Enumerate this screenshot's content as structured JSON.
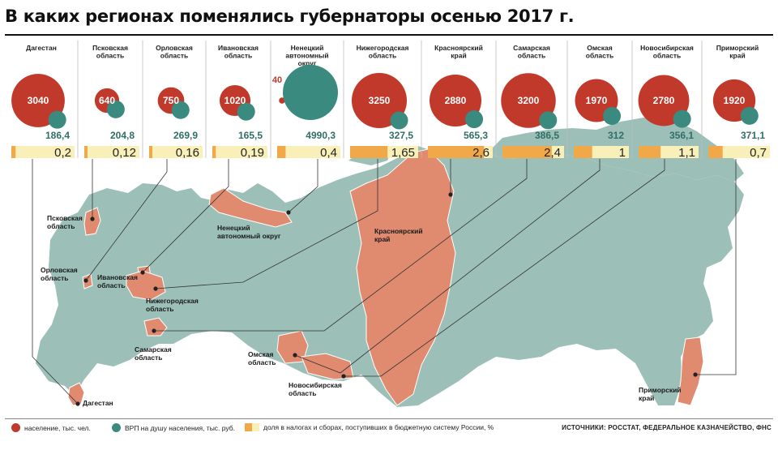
{
  "title": "В каких регионах поменялись губернаторы осенью 2017 г.",
  "colors": {
    "population": "#c0392b",
    "grp": "#3a8a80",
    "share_fill": "#f0a848",
    "share_bg": "#f8f0b8",
    "map_land": "#9cc0b7",
    "map_highlight": "#e08a70",
    "map_border": "#ffffff"
  },
  "chart_data": {
    "type": "bubble-table",
    "regions": [
      {
        "name": "Дагестан",
        "label_lines": [
          "Дагестан"
        ],
        "population": 3040,
        "population_label": "3040",
        "grp": 186.4,
        "grp_label": "186,4",
        "share": 0.2,
        "share_label": "0,2",
        "map_label_lines": [
          "Дагестан"
        ]
      },
      {
        "name": "Псковская область",
        "label_lines": [
          "Псковская",
          "область"
        ],
        "population": 640,
        "population_label": "640",
        "grp": 204.8,
        "grp_label": "204,8",
        "share": 0.12,
        "share_label": "0,12",
        "map_label_lines": [
          "Псковская",
          "область"
        ]
      },
      {
        "name": "Орловская область",
        "label_lines": [
          "Орловская",
          "область"
        ],
        "population": 750,
        "population_label": "750",
        "grp": 269.9,
        "grp_label": "269,9",
        "share": 0.16,
        "share_label": "0,16",
        "map_label_lines": [
          "Орловская",
          "область"
        ]
      },
      {
        "name": "Ивановская область",
        "label_lines": [
          "Ивановская",
          "область"
        ],
        "population": 1020,
        "population_label": "1020",
        "grp": 165.5,
        "grp_label": "165,5",
        "share": 0.19,
        "share_label": "0,19",
        "map_label_lines": [
          "Ивановская",
          "область"
        ]
      },
      {
        "name": "Ненецкий автономный округ",
        "label_lines": [
          "Ненецкий",
          "автономный",
          "округ"
        ],
        "population": 40,
        "population_label": "40",
        "grp": 4990.3,
        "grp_label": "4990,3",
        "share": 0.4,
        "share_label": "0,4",
        "map_label_lines": [
          "Ненецкий",
          "автономный округ"
        ]
      },
      {
        "name": "Нижегородская область",
        "label_lines": [
          "Нижегородская",
          "область"
        ],
        "population": 3250,
        "population_label": "3250",
        "grp": 327.5,
        "grp_label": "327,5",
        "share": 1.65,
        "share_label": "1,65",
        "map_label_lines": [
          "Нижегородская",
          "область"
        ]
      },
      {
        "name": "Красноярский край",
        "label_lines": [
          "Красноярский",
          "край"
        ],
        "population": 2880,
        "population_label": "2880",
        "grp": 565.3,
        "grp_label": "565,3",
        "share": 2.6,
        "share_label": "2,6",
        "map_label_lines": [
          "Красноярский",
          "край"
        ]
      },
      {
        "name": "Самарская область",
        "label_lines": [
          "Самарская",
          "область"
        ],
        "population": 3200,
        "population_label": "3200",
        "grp": 386.5,
        "grp_label": "386,5",
        "share": 2.4,
        "share_label": "2,4",
        "map_label_lines": [
          "Самарская",
          "область"
        ]
      },
      {
        "name": "Омская область",
        "label_lines": [
          "Омская",
          "область"
        ],
        "population": 1970,
        "population_label": "1970",
        "grp": 312,
        "grp_label": "312",
        "share": 1,
        "share_label": "1",
        "map_label_lines": [
          "Омская",
          "область"
        ]
      },
      {
        "name": "Новосибирская область",
        "label_lines": [
          "Новосибирская",
          "область"
        ],
        "population": 2780,
        "population_label": "2780",
        "grp": 356.1,
        "grp_label": "356,1",
        "share": 1.1,
        "share_label": "1,1",
        "map_label_lines": [
          "Новосибирская",
          "область"
        ]
      },
      {
        "name": "Приморский край",
        "label_lines": [
          "Приморский",
          "край"
        ],
        "population": 1920,
        "population_label": "1920",
        "grp": 371.1,
        "grp_label": "371,1",
        "share": 0.7,
        "share_label": "0,7",
        "map_label_lines": [
          "Приморский",
          "край"
        ]
      }
    ]
  },
  "legend": {
    "population": "население, тыс. чел.",
    "grp": "ВРП на душу населения, тыс. руб.",
    "share": "доля в налогах и сборах, поступивших в бюджетную систему России, %"
  },
  "sources": "ИСТОЧНИКИ: РОССТАТ, ФЕДЕРАЛЬНОЕ КАЗНАЧЕЙСТВО, ФНС"
}
